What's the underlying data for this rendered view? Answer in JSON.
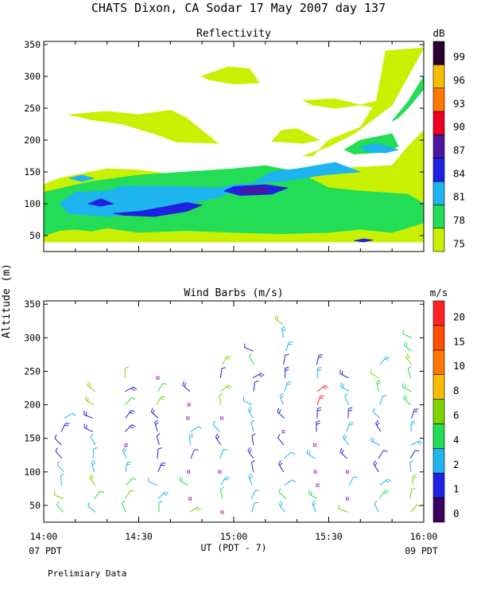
{
  "figure": {
    "title": "CHATS Dixon, CA  Sodar  17 May 2007  day 137",
    "shared_ylabel": "Altitude (m)",
    "xlabel": "UT  (PDT - 7)",
    "x_ticks": [
      "14:00",
      "14:30",
      "15:00",
      "15:30",
      "16:00"
    ],
    "pdt_left": "07 PDT",
    "pdt_right": "09 PDT",
    "footnote": "Prelimiary Data"
  },
  "chart_data": [
    {
      "type": "heatmap",
      "title": "Reflectivity",
      "x_range_minutes": [
        0,
        120
      ],
      "x_tick_labels": [
        "14:00",
        "14:30",
        "15:00",
        "15:30",
        "16:00"
      ],
      "y_ticks": [
        50,
        100,
        150,
        200,
        250,
        300,
        350
      ],
      "ylim": [
        25,
        355
      ],
      "colorbar": {
        "unit": "dB",
        "levels": [
          75,
          78,
          81,
          84,
          87,
          90,
          93,
          96,
          99
        ],
        "colors": [
          "#c8f000",
          "#22dd55",
          "#1eb4f0",
          "#2020e0",
          "#4a16a0",
          "#f00020",
          "#ff7800",
          "#f8bc00",
          "#2a0030"
        ]
      },
      "regions": [
        {
          "level": 75,
          "polygon": [
            [
              0,
              40
            ],
            [
              0,
              130
            ],
            [
              5,
              140
            ],
            [
              20,
              155
            ],
            [
              30,
              153
            ],
            [
              45,
              143
            ],
            [
              70,
              145
            ],
            [
              90,
              155
            ],
            [
              110,
              160
            ],
            [
              115,
              190
            ],
            [
              120,
              215
            ],
            [
              120,
              40
            ]
          ]
        },
        {
          "level": 75,
          "polygon": [
            [
              8,
              240
            ],
            [
              20,
              245
            ],
            [
              30,
              240
            ],
            [
              40,
              247
            ],
            [
              45,
              235
            ],
            [
              50,
              215
            ],
            [
              55,
              195
            ],
            [
              42,
              197
            ],
            [
              35,
              210
            ],
            [
              25,
              225
            ],
            [
              15,
              232
            ]
          ]
        },
        {
          "level": 75,
          "polygon": [
            [
              50,
              300
            ],
            [
              58,
              315
            ],
            [
              65,
              312
            ],
            [
              68,
              290
            ],
            [
              60,
              288
            ],
            [
              52,
              295
            ]
          ]
        },
        {
          "level": 75,
          "polygon": [
            [
              82,
              262
            ],
            [
              85,
              255
            ],
            [
              92,
              250
            ],
            [
              100,
              255
            ],
            [
              108,
              265
            ],
            [
              106,
              250
            ],
            [
              100,
              255
            ],
            [
              92,
              265
            ],
            [
              82,
              262
            ]
          ]
        },
        {
          "level": 75,
          "polygon": [
            [
              82,
              175
            ],
            [
              90,
              190
            ],
            [
              98,
              210
            ],
            [
              110,
              255
            ],
            [
              115,
              300
            ],
            [
              120,
              345
            ],
            [
              108,
              340
            ],
            [
              105,
              260
            ],
            [
              100,
              220
            ],
            [
              90,
              200
            ],
            [
              85,
              175
            ]
          ]
        },
        {
          "level": 75,
          "polygon": [
            [
              75,
              215
            ],
            [
              80,
              218
            ],
            [
              87,
              200
            ],
            [
              82,
              195
            ],
            [
              72,
              198
            ]
          ]
        },
        {
          "level": 78,
          "polygon": [
            [
              0,
              50
            ],
            [
              5,
              58
            ],
            [
              10,
              60
            ],
            [
              15,
              57
            ],
            [
              20,
              62
            ],
            [
              30,
              55
            ],
            [
              45,
              58
            ],
            [
              60,
              55
            ],
            [
              75,
              53
            ],
            [
              90,
              55
            ],
            [
              100,
              60
            ],
            [
              110,
              55
            ],
            [
              120,
              70
            ],
            [
              120,
              100
            ],
            [
              115,
              115
            ],
            [
              100,
              120
            ],
            [
              90,
              125
            ],
            [
              80,
              150
            ],
            [
              70,
              160
            ],
            [
              60,
              155
            ],
            [
              45,
              150
            ],
            [
              30,
              145
            ],
            [
              15,
              135
            ],
            [
              0,
              118
            ]
          ]
        },
        {
          "level": 78,
          "polygon": [
            [
              95,
              185
            ],
            [
              100,
              200
            ],
            [
              110,
              210
            ],
            [
              112,
              190
            ],
            [
              105,
              180
            ],
            [
              98,
              178
            ]
          ]
        },
        {
          "level": 78,
          "polygon": [
            [
              110,
              230
            ],
            [
              115,
              260
            ],
            [
              120,
              300
            ],
            [
              120,
              280
            ],
            [
              115,
              250
            ],
            [
              112,
              235
            ]
          ]
        },
        {
          "level": 81,
          "polygon": [
            [
              5,
              100
            ],
            [
              10,
              118
            ],
            [
              20,
              120
            ],
            [
              25,
              128
            ],
            [
              40,
              127
            ],
            [
              55,
              125
            ],
            [
              60,
              130
            ],
            [
              75,
              135
            ],
            [
              88,
              145
            ],
            [
              100,
              150
            ],
            [
              92,
              165
            ],
            [
              80,
              155
            ],
            [
              72,
              150
            ],
            [
              65,
              130
            ],
            [
              55,
              110
            ],
            [
              45,
              100
            ],
            [
              30,
              85
            ],
            [
              20,
              80
            ],
            [
              8,
              85
            ]
          ]
        },
        {
          "level": 81,
          "polygon": [
            [
              8,
              140
            ],
            [
              12,
              145
            ],
            [
              16,
              140
            ],
            [
              12,
              135
            ]
          ]
        },
        {
          "level": 81,
          "polygon": [
            [
              100,
              190
            ],
            [
              105,
              195
            ],
            [
              112,
              185
            ],
            [
              108,
              180
            ],
            [
              102,
              182
            ]
          ]
        },
        {
          "level": 84,
          "polygon": [
            [
              14,
              100
            ],
            [
              18,
              108
            ],
            [
              22,
              100
            ],
            [
              18,
              96
            ]
          ]
        },
        {
          "level": 84,
          "polygon": [
            [
              22,
              85
            ],
            [
              30,
              88
            ],
            [
              38,
              95
            ],
            [
              45,
              102
            ],
            [
              50,
              98
            ],
            [
              45,
              88
            ],
            [
              35,
              80
            ],
            [
              25,
              82
            ]
          ]
        },
        {
          "level": 84,
          "polygon": [
            [
              57,
              120
            ],
            [
              60,
              127
            ],
            [
              70,
              130
            ],
            [
              77,
              125
            ],
            [
              72,
              115
            ],
            [
              62,
              113
            ]
          ]
        },
        {
          "level": 84,
          "polygon": [
            [
              98,
              42
            ],
            [
              101,
              45
            ],
            [
              104,
              43
            ],
            [
              101,
              40
            ]
          ]
        },
        {
          "level": 87,
          "polygon": [
            [
              61,
              120
            ],
            [
              64,
              125
            ],
            [
              71,
              124
            ],
            [
              70,
              117
            ],
            [
              64,
              116
            ]
          ]
        }
      ]
    },
    {
      "type": "scatter",
      "title": "Wind Barbs (m/s)",
      "x_range_minutes": [
        0,
        120
      ],
      "x_tick_labels": [
        "14:00",
        "14:30",
        "15:00",
        "15:30",
        "16:00"
      ],
      "y_ticks": [
        50,
        100,
        150,
        200,
        250,
        300,
        350
      ],
      "ylim": [
        25,
        355
      ],
      "colorbar": {
        "unit": "m/s",
        "levels": [
          0,
          1,
          2,
          4,
          6,
          8,
          10,
          15,
          20
        ],
        "colors": [
          "#3a0060",
          "#2020e0",
          "#1eb4f0",
          "#22dd55",
          "#7ed400",
          "#f8bc00",
          "#ff7800",
          "#ff5000",
          "#ff2020"
        ]
      },
      "profile_times_min": [
        6,
        16,
        26,
        36,
        46,
        56,
        66,
        76,
        86,
        96,
        106,
        116
      ],
      "profile_top_altitudes_m": [
        185,
        220,
        255,
        245,
        220,
        270,
        290,
        320,
        270,
        245,
        275,
        305
      ],
      "speed_colors": [
        "#3a0060",
        "#2020e0",
        "#1eb4f0",
        "#22dd55",
        "#7ed400",
        "#f8bc00",
        "#ff7800",
        "#ff5000",
        "#ff2020"
      ],
      "calm_marker_color": "#b030b0"
    }
  ]
}
